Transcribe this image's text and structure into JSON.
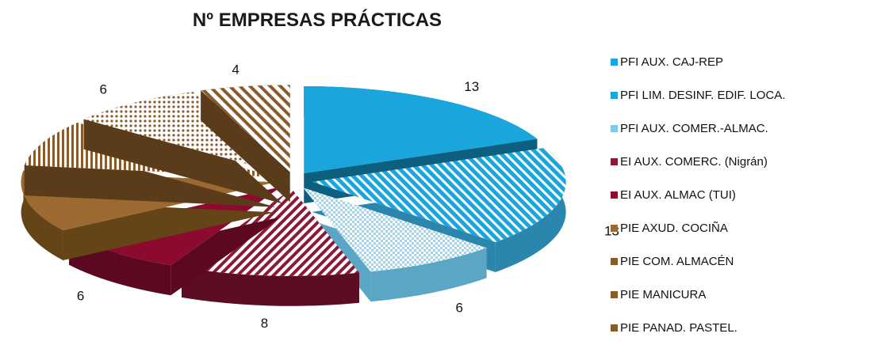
{
  "chart_data": {
    "type": "pie",
    "title": "Nº EMPRESAS PRÁCTICAS",
    "categories": [
      "PFI AUX. CAJ-REP",
      "PFI LIM. DESINF. EDIF. LOCA.",
      "PFI AUX. COMER.-ALMAC.",
      "EI AUX. COMERC. (Nigrán)",
      "EI AUX. ALMAC (TUI)",
      "PIE AXUD. COCIÑA",
      "PIE COM. ALMACÉN",
      "PIE MANICURA",
      "PIE PANAD. PASTEL."
    ],
    "values": [
      13,
      13,
      6,
      8,
      6,
      8,
      6,
      6,
      4
    ],
    "colors": [
      "#1aa6dc",
      "#1aa6dc",
      "#7ec8e8",
      "#8c1838",
      "#8c0a2e",
      "#9c6a30",
      "#8a5a2c",
      "#8a5a2c",
      "#8a5a2c"
    ],
    "legend_position": "right",
    "style": "exploded-3d"
  }
}
